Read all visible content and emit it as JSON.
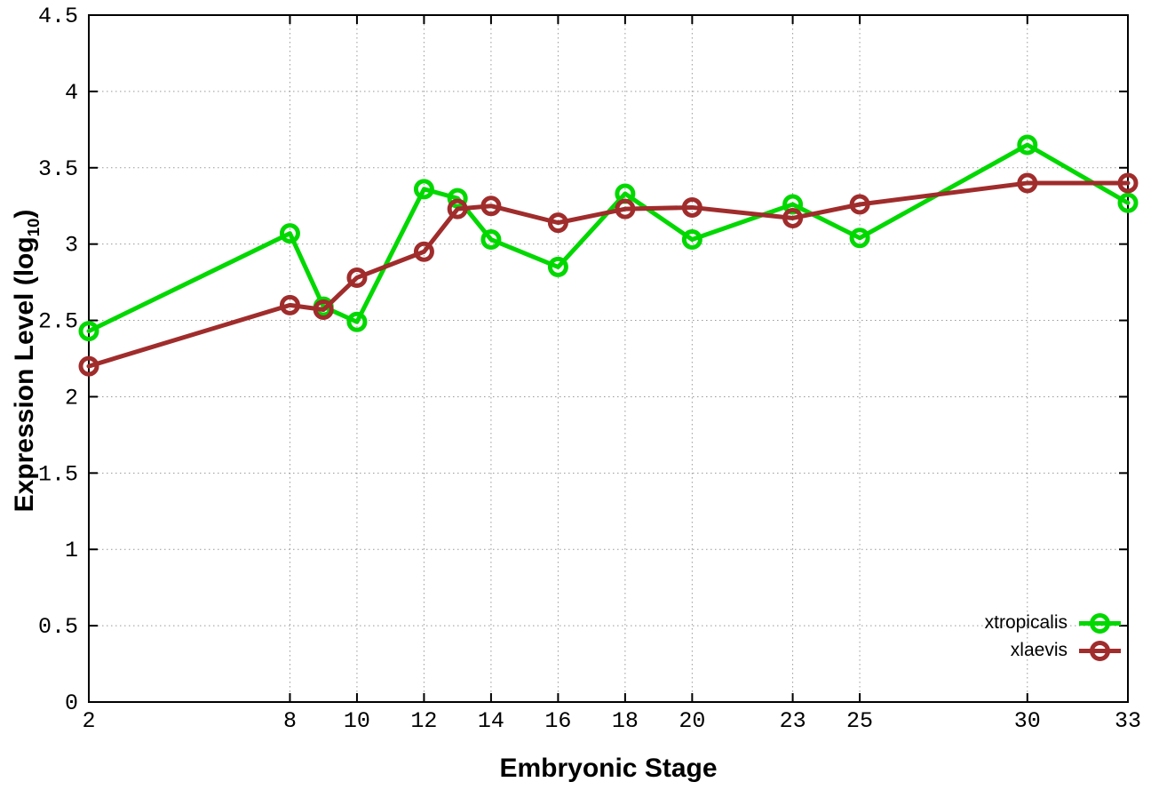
{
  "figure": {
    "background": "#ffffff"
  },
  "chart_data": {
    "type": "line",
    "title": "",
    "xlabel": "Embryonic Stage",
    "ylabel": {
      "prefix": "Expression Level (log",
      "subscript": "10",
      "suffix": ")"
    },
    "xlim": [
      2,
      33
    ],
    "ylim": [
      0,
      4.5
    ],
    "grid": true,
    "legend_position": "bottom-right",
    "x": [
      2,
      8,
      9,
      10,
      12,
      13,
      14,
      16,
      18,
      20,
      23,
      25,
      30,
      33
    ],
    "xtick_values": [
      2,
      8,
      10,
      12,
      14,
      16,
      18,
      20,
      23,
      25,
      30,
      33
    ],
    "xtick_labels": [
      "2",
      "8",
      "10",
      "12",
      "14",
      "16",
      "18",
      "20",
      "23",
      "25",
      "30",
      "33"
    ],
    "ytick_values": [
      0,
      0.5,
      1,
      1.5,
      2,
      2.5,
      3,
      3.5,
      4,
      4.5
    ],
    "ytick_labels": [
      "0",
      "0.5",
      "1",
      "1.5",
      "2",
      "2.5",
      "3",
      "3.5",
      "4",
      "4.5"
    ],
    "series": [
      {
        "name": "xtropicalis",
        "color": "#00d800",
        "values": [
          2.43,
          3.07,
          2.59,
          2.49,
          3.36,
          3.3,
          3.03,
          2.85,
          3.33,
          3.03,
          3.26,
          3.04,
          3.65,
          3.27
        ]
      },
      {
        "name": "xlaevis",
        "color": "#a02c2c",
        "values": [
          2.2,
          2.6,
          2.57,
          2.78,
          2.95,
          3.23,
          3.25,
          3.14,
          3.23,
          3.24,
          3.17,
          3.26,
          3.4,
          3.4
        ]
      }
    ],
    "style": {
      "grid_color": "#999999",
      "axis_color": "#000000",
      "text_color": "#000000",
      "line_width": 5,
      "marker_radius": 9,
      "marker_stroke": 5
    }
  }
}
